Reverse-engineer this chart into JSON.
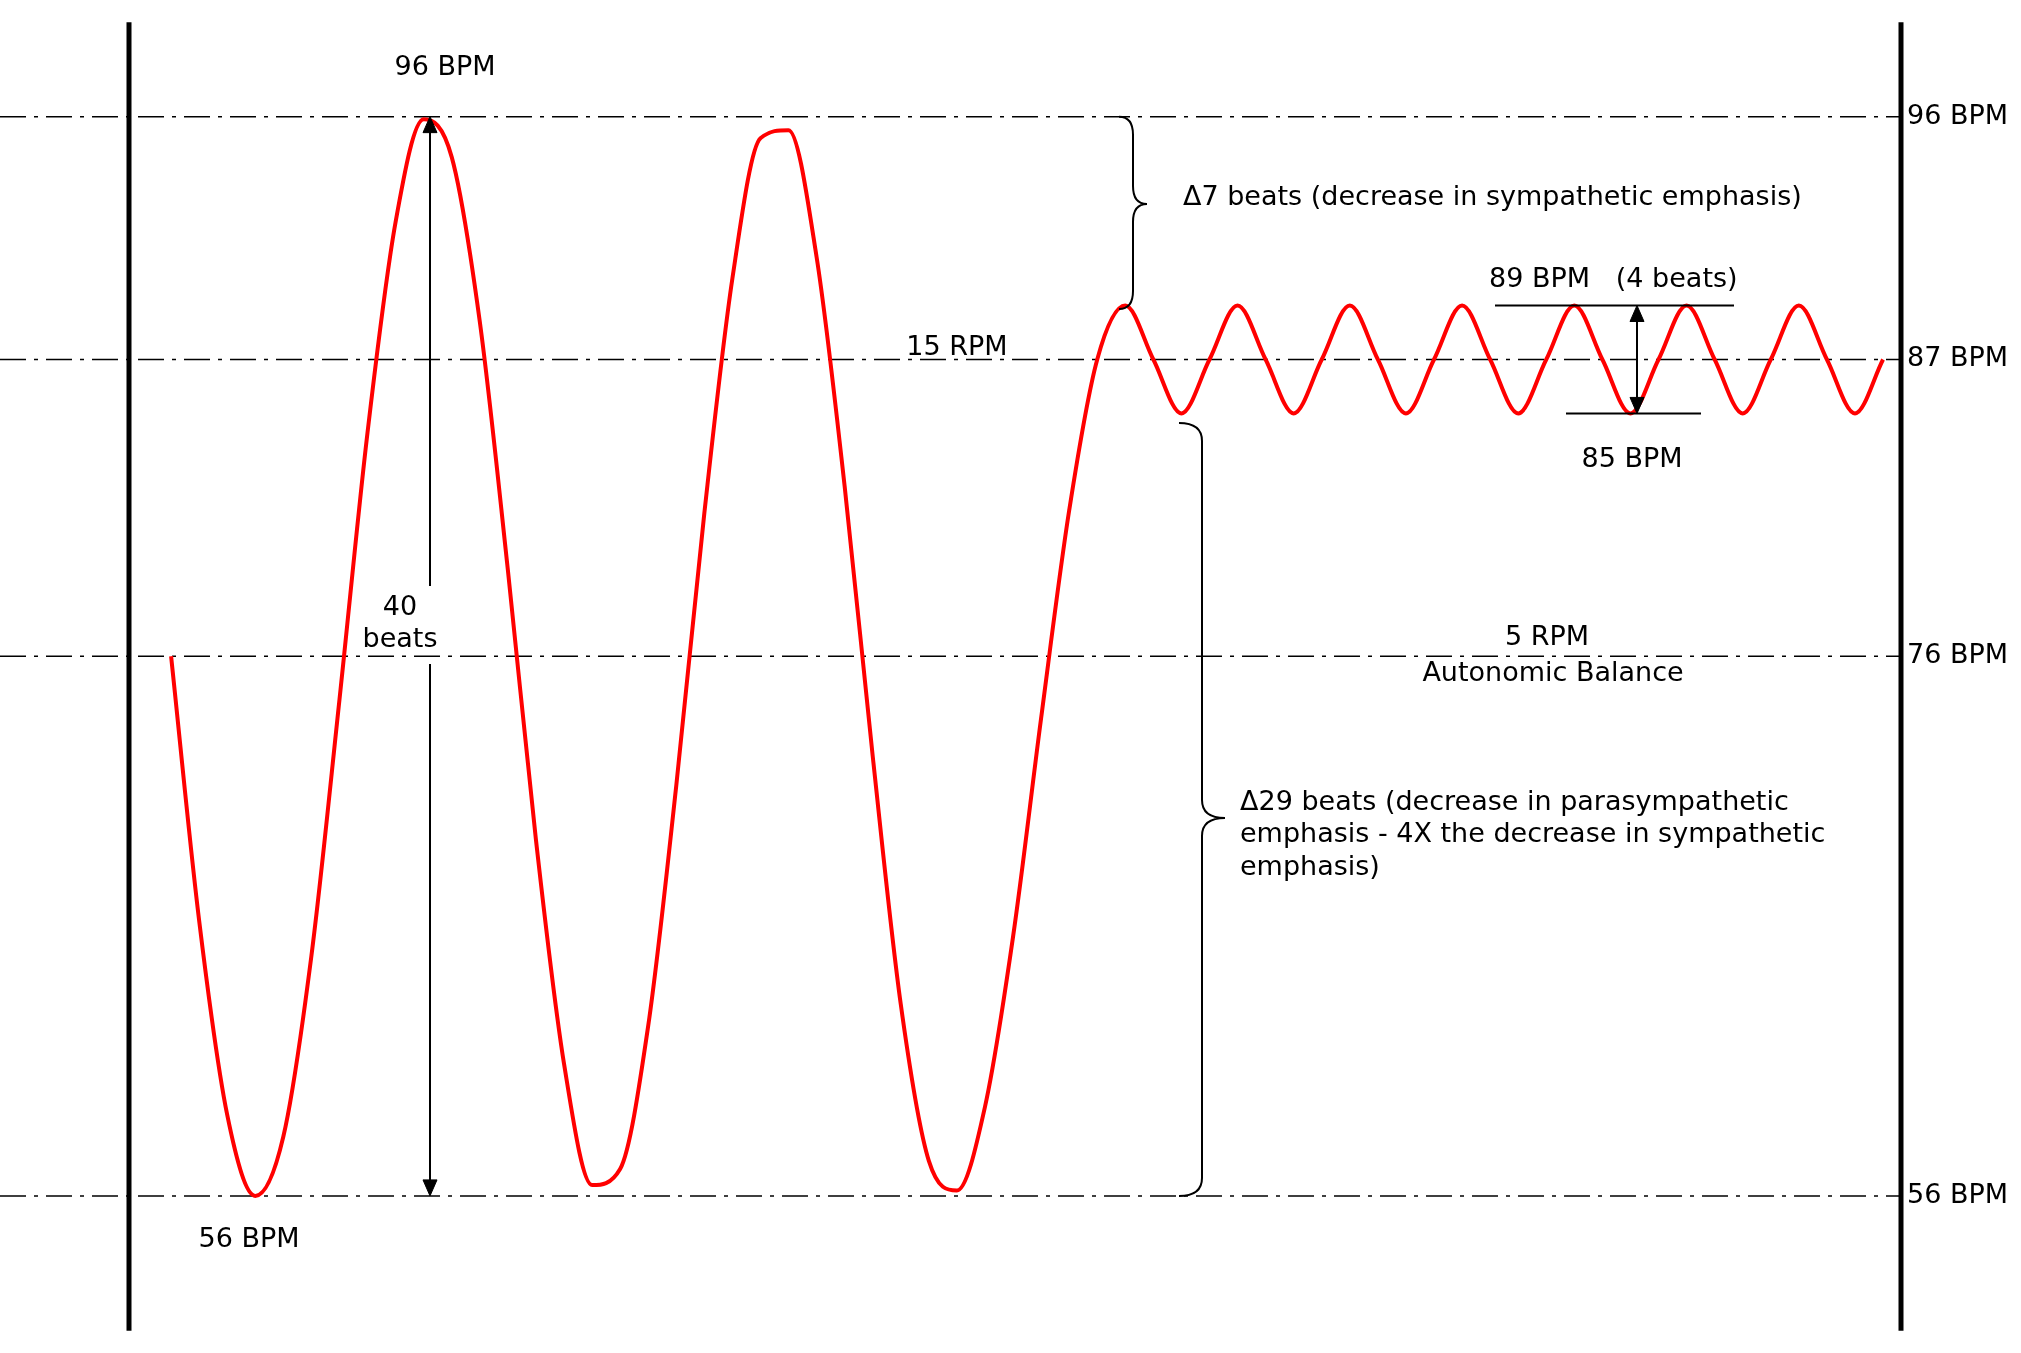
{
  "chart_data": {
    "type": "line",
    "color": "#ff0000",
    "marker": "none",
    "grid": "y",
    "tick_labels": "y",
    "categories": [
      null,
      null,
      null,
      null,
      null,
      null,
      null,
      null,
      null,
      null,
      null,
      null,
      null,
      null,
      null,
      null,
      null,
      null,
      null,
      null,
      null,
      null,
      null,
      null,
      null,
      null,
      null,
      null,
      null,
      null,
      null,
      null,
      null,
      null,
      null,
      null,
      null,
      null,
      null,
      null,
      null,
      null,
      null,
      null,
      null,
      null,
      null,
      null,
      null,
      null,
      null,
      null,
      null,
      null,
      null,
      null,
      null,
      null,
      null,
      null,
      null,
      null
    ],
    "values": [
      76,
      66.2,
      59,
      56,
      58.2,
      64.9,
      74.4,
      84.3,
      92.1,
      95.9,
      94.5,
      88.4,
      79.2,
      69.2,
      60.9,
      56.4,
      57,
      62.3,
      71.2,
      81.3,
      90,
      95.2,
      95.5,
      90.8,
      82.3,
      72.3,
      63.1,
      57.3,
      56.2,
      59.3,
      65.6,
      73.7,
      81.4,
      87,
      89,
      87,
      85,
      87,
      89,
      87,
      85,
      87,
      89,
      87,
      85,
      87,
      89,
      87,
      85,
      87,
      89,
      87,
      85,
      87,
      89,
      87,
      85,
      87,
      89,
      87,
      85,
      87
    ],
    "ylim": [
      51,
      99.5
    ],
    "yticks": [
      {
        "value": 56,
        "label": "56 BPM"
      },
      {
        "value": 76,
        "label": "76 BPM"
      },
      {
        "value": 87,
        "label": "87 BPM"
      },
      {
        "value": 96,
        "label": "96 BPM"
      }
    ],
    "annotations": [
      "96 BPM",
      "56 BPM",
      "40 beats",
      "15 RPM",
      "5 RPM",
      "Autonomic Balance",
      "Δ7 beats (decrease in sympathetic emphasis)",
      "89 BPM   (4 beats)",
      "85 BPM",
      "Δ29 beats (decrease in parasympathetic emphasis - 4X the decrease in sympathetic emphasis)"
    ]
  }
}
